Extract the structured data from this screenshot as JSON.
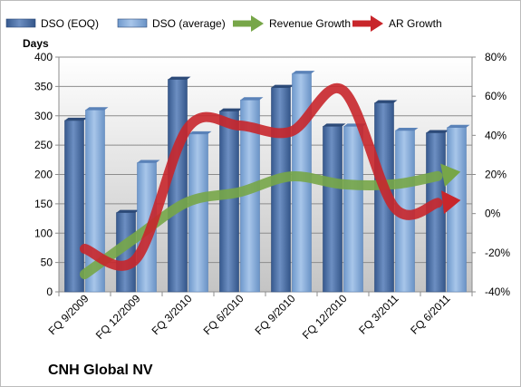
{
  "chart_data": {
    "type": "bar",
    "title": "CNH Global NV",
    "ylabel": "Days",
    "categories": [
      "FQ 9/2009",
      "FQ 12/2009",
      "FQ 3/2010",
      "FQ 6/2010",
      "FQ 9/2010",
      "FQ 12/2010",
      "FQ 3/2011",
      "FQ 6/2011"
    ],
    "ylim": [
      0,
      400
    ],
    "y_ticks": [
      0,
      50,
      100,
      150,
      200,
      250,
      300,
      350,
      400
    ],
    "y2lim": [
      -40,
      80
    ],
    "y2_ticks": [
      "-40%",
      "-20%",
      "0%",
      "20%",
      "40%",
      "60%",
      "80%"
    ],
    "y2_tick_values": [
      -40,
      -20,
      0,
      20,
      40,
      60,
      80
    ],
    "grid": true,
    "legend": "top",
    "series": [
      {
        "name": "DSO (EOQ)",
        "kind": "bar",
        "axis": "left",
        "color": "#4a6fa5",
        "values": [
          292,
          135,
          362,
          308,
          348,
          282,
          322,
          271
        ]
      },
      {
        "name": "DSO (average)",
        "kind": "bar",
        "axis": "left",
        "color": "#7ea6d6",
        "values": [
          310,
          220,
          269,
          327,
          372,
          282,
          275,
          280
        ]
      },
      {
        "name": "Revenue Growth",
        "kind": "line",
        "axis": "right",
        "color": "#77a648",
        "values": [
          -31,
          -12,
          6,
          11,
          19,
          15,
          15,
          20
        ]
      },
      {
        "name": "AR Growth",
        "kind": "line",
        "axis": "right",
        "color": "#c8262b",
        "values": [
          -18,
          -23,
          44,
          45,
          42,
          63,
          3,
          6
        ]
      }
    ]
  }
}
